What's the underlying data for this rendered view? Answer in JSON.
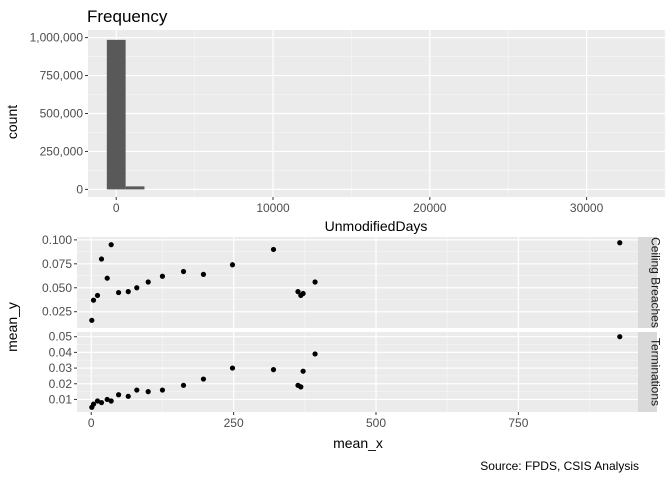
{
  "chart_data": [
    {
      "type": "bar",
      "title": "Frequency",
      "xlabel": "UnmodifiedDays",
      "ylabel": "count",
      "xlim": [
        -1800,
        35000
      ],
      "ylim": [
        -50000,
        1050000
      ],
      "x_ticks": [
        0,
        10000,
        20000,
        30000
      ],
      "y_ticks": [
        0,
        250000,
        500000,
        750000,
        1000000
      ],
      "y_tick_labels": [
        "0",
        "250,000",
        "500,000",
        "750,000",
        "1,000,000"
      ],
      "bar_width": 1200,
      "bars": [
        {
          "x": 0,
          "count": 985000
        },
        {
          "x": 1200,
          "count": 20000
        }
      ],
      "bar_color": "#595959",
      "panel_background": "#ebebeb",
      "grid": true
    },
    {
      "type": "scatter",
      "xlabel": "mean_x",
      "ylabel": "mean_y",
      "xlim": [
        -25,
        960
      ],
      "x_ticks": [
        0,
        250,
        500,
        750
      ],
      "x_tick_labels": [
        "0",
        "250",
        "500",
        "750"
      ],
      "point_color": "#000000",
      "panel_background": "#ebebeb",
      "strip_background": "#d9d9d9",
      "grid": true,
      "facets": [
        {
          "strip_label": "Ceiling Breaches",
          "ylim": [
            0.008,
            0.103
          ],
          "y_ticks": [
            0.025,
            0.05,
            0.075,
            0.1
          ],
          "y_tick_labels": [
            "0.025",
            "0.050",
            "0.075",
            "0.100"
          ],
          "points": [
            {
              "x": 1,
              "y": 0.016
            },
            {
              "x": 4,
              "y": 0.037
            },
            {
              "x": 11,
              "y": 0.042
            },
            {
              "x": 18,
              "y": 0.08
            },
            {
              "x": 28,
              "y": 0.06
            },
            {
              "x": 35,
              "y": 0.095
            },
            {
              "x": 48,
              "y": 0.045
            },
            {
              "x": 65,
              "y": 0.046
            },
            {
              "x": 80,
              "y": 0.05
            },
            {
              "x": 100,
              "y": 0.056
            },
            {
              "x": 125,
              "y": 0.062
            },
            {
              "x": 162,
              "y": 0.067
            },
            {
              "x": 197,
              "y": 0.064
            },
            {
              "x": 248,
              "y": 0.074
            },
            {
              "x": 320,
              "y": 0.09
            },
            {
              "x": 363,
              "y": 0.046
            },
            {
              "x": 368,
              "y": 0.042
            },
            {
              "x": 372,
              "y": 0.044
            },
            {
              "x": 393,
              "y": 0.056
            },
            {
              "x": 928,
              "y": 0.097
            }
          ]
        },
        {
          "strip_label": "Terminations",
          "ylim": [
            0.002,
            0.053
          ],
          "y_ticks": [
            0.01,
            0.02,
            0.03,
            0.04,
            0.05
          ],
          "y_tick_labels": [
            "0.01",
            "0.02",
            "0.03",
            "0.04",
            "0.05"
          ],
          "points": [
            {
              "x": 1,
              "y": 0.005
            },
            {
              "x": 4,
              "y": 0.007
            },
            {
              "x": 11,
              "y": 0.009
            },
            {
              "x": 18,
              "y": 0.008
            },
            {
              "x": 28,
              "y": 0.01
            },
            {
              "x": 35,
              "y": 0.009
            },
            {
              "x": 48,
              "y": 0.013
            },
            {
              "x": 65,
              "y": 0.012
            },
            {
              "x": 80,
              "y": 0.016
            },
            {
              "x": 100,
              "y": 0.015
            },
            {
              "x": 125,
              "y": 0.016
            },
            {
              "x": 162,
              "y": 0.019
            },
            {
              "x": 197,
              "y": 0.023
            },
            {
              "x": 248,
              "y": 0.03
            },
            {
              "x": 320,
              "y": 0.029
            },
            {
              "x": 363,
              "y": 0.019
            },
            {
              "x": 368,
              "y": 0.018
            },
            {
              "x": 372,
              "y": 0.028
            },
            {
              "x": 393,
              "y": 0.039
            },
            {
              "x": 928,
              "y": 0.05
            }
          ]
        }
      ]
    }
  ],
  "caption": "Source: FPDS, CSIS Analysis"
}
